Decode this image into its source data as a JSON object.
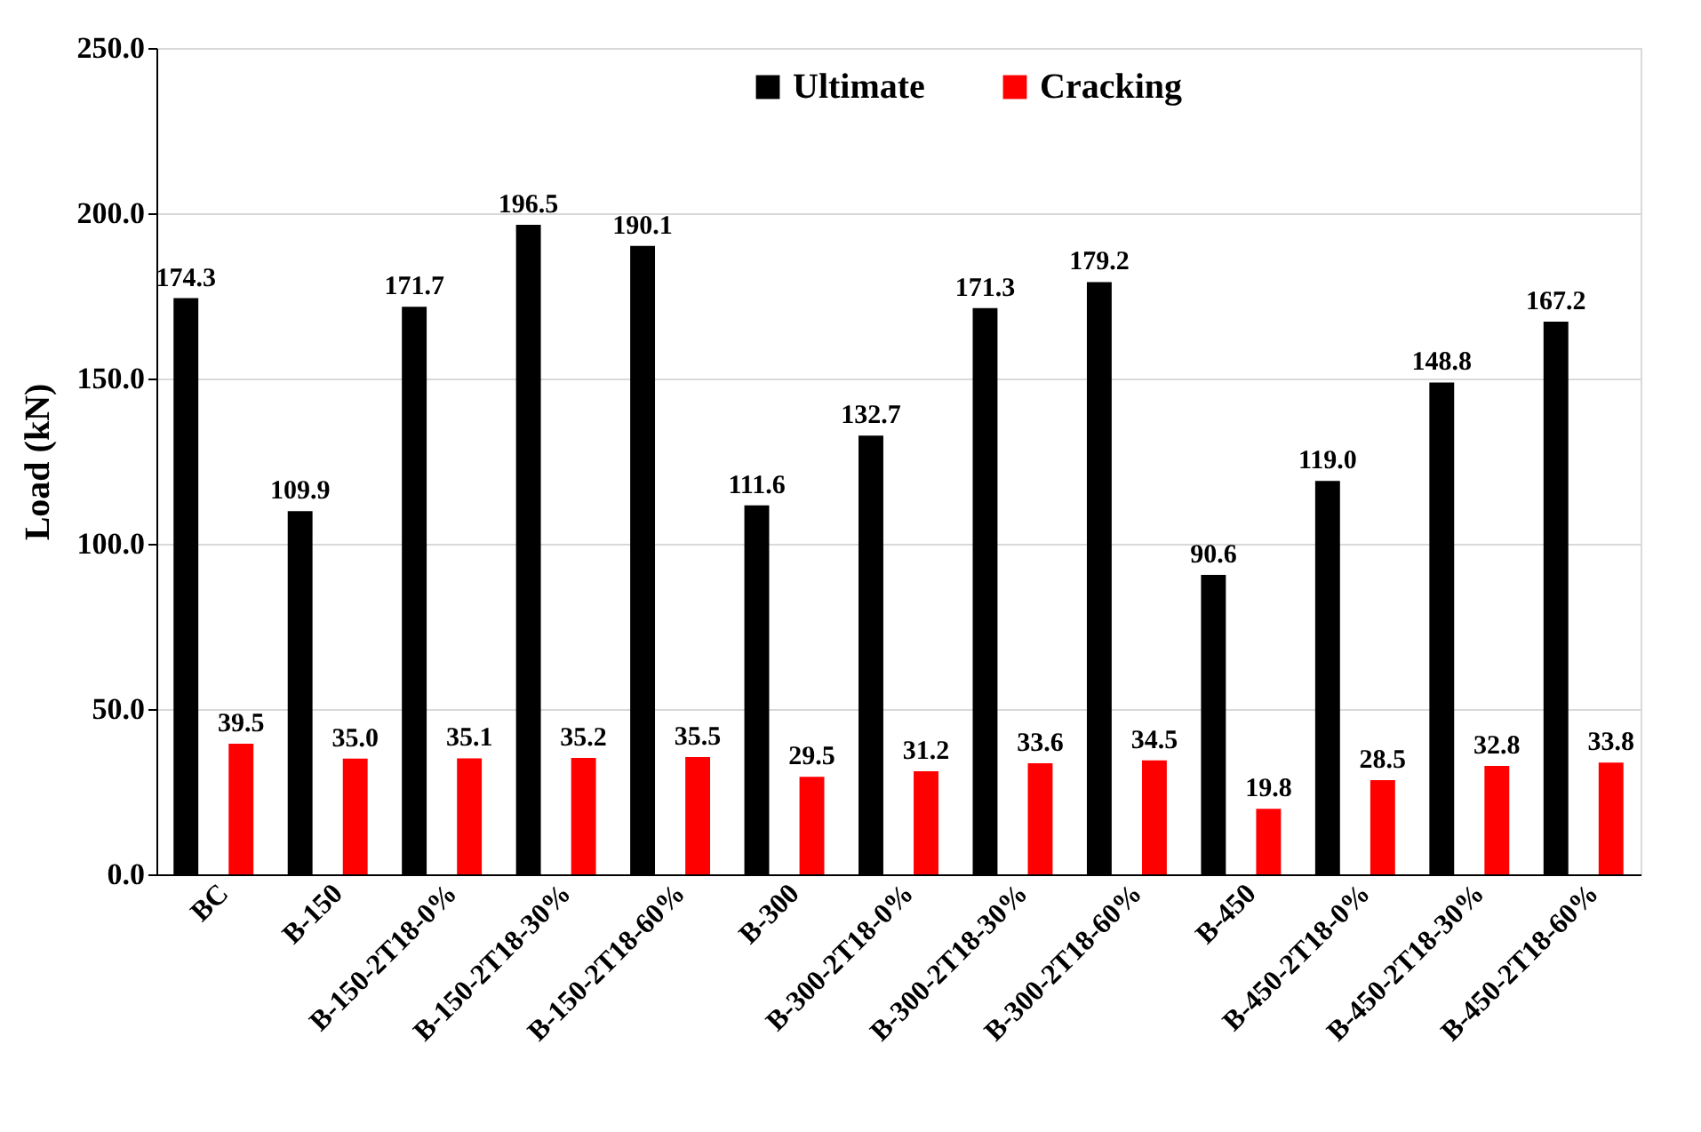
{
  "chart_data": {
    "type": "bar",
    "ylabel": "Load (kN)",
    "categories": [
      "BC",
      "B-150",
      "B-150-2T18-0%",
      "B-150-2T18-30%",
      "B-150-2T18-60%",
      "B-300",
      "B-300-2T18-0%",
      "B-300-2T18-30%",
      "B-300-2T18-60%",
      "B-450",
      "B-450-2T18-0%",
      "B-450-2T18-30%",
      "B-450-2T18-60%"
    ],
    "series": [
      {
        "name": "Ultimate",
        "color": "#000000",
        "values": [
          174.3,
          109.9,
          171.7,
          196.5,
          190.1,
          111.6,
          132.7,
          171.3,
          179.2,
          90.6,
          119.0,
          148.8,
          167.2
        ],
        "value_labels": [
          "174.3",
          "109.9",
          "171.7",
          "196.5",
          "190.1",
          "111.6",
          "132.7",
          "171.3",
          "179.2",
          "90.6",
          "119.0",
          "148.8",
          "167.2"
        ]
      },
      {
        "name": "Cracking",
        "color": "#ff0000",
        "values": [
          39.5,
          35.0,
          35.1,
          35.2,
          35.5,
          29.5,
          31.2,
          33.6,
          34.5,
          19.8,
          28.5,
          32.8,
          33.8
        ],
        "value_labels": [
          "39.5",
          "35.0",
          "35.1",
          "35.2",
          "35.5",
          "29.5",
          "31.2",
          "33.6",
          "34.5",
          "19.8",
          "28.5",
          "32.8",
          "33.8"
        ]
      }
    ],
    "ylim": [
      0,
      250
    ],
    "yticks": [
      {
        "value": 0,
        "label": "0.0"
      },
      {
        "value": 50,
        "label": "50.0"
      },
      {
        "value": 100,
        "label": "100.0"
      },
      {
        "value": 150,
        "label": "150.0"
      },
      {
        "value": 200,
        "label": "200.0"
      },
      {
        "value": 250,
        "label": "250.0"
      }
    ],
    "grid": "y",
    "legend": "top"
  }
}
